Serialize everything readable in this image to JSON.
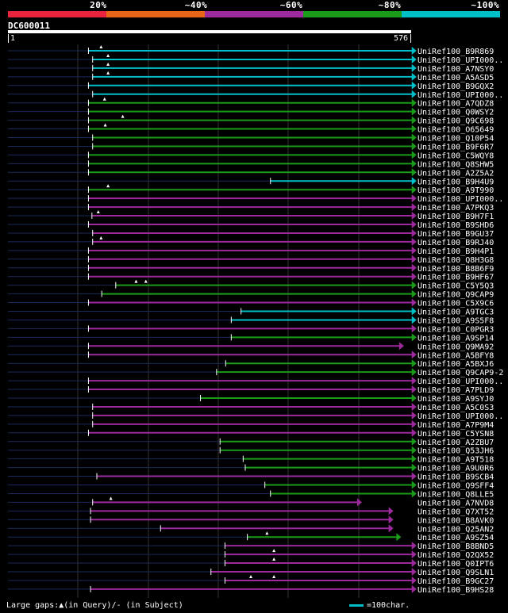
{
  "legend": {
    "colors": [
      "#e8233c",
      "#e8661a",
      "#9c2a9c",
      "#1a9c1a",
      "#00bfc8"
    ],
    "labels": [
      "20%",
      "~40%",
      "~60%",
      "~80%",
      "~100%"
    ]
  },
  "query": {
    "name": "DC600011",
    "start_label": "1",
    "end_label": "576",
    "length": 576
  },
  "hits": [
    {
      "name": "UniRef100_B9R869",
      "start": 115,
      "end": 578,
      "color": "cyan",
      "triangles": [
        133
      ]
    },
    {
      "name": "UniRef100_UPI000..",
      "start": 121,
      "end": 578,
      "color": "cyan",
      "triangles": [
        143
      ]
    },
    {
      "name": "UniRef100_A7NSY0",
      "start": 121,
      "end": 578,
      "color": "cyan",
      "triangles": [
        143
      ]
    },
    {
      "name": "UniRef100_A5ASD5",
      "start": 121,
      "end": 578,
      "color": "cyan",
      "triangles": [
        143
      ]
    },
    {
      "name": "UniRef100_B9GQX2",
      "start": 115,
      "end": 578,
      "color": "cyan",
      "triangles": []
    },
    {
      "name": "UniRef100_UPI000..",
      "start": 121,
      "end": 578,
      "color": "cyan",
      "triangles": []
    },
    {
      "name": "UniRef100_A7QDZ8",
      "start": 115,
      "end": 578,
      "color": "green",
      "triangles": [
        138
      ]
    },
    {
      "name": "UniRef100_Q0WSY2",
      "start": 115,
      "end": 578,
      "color": "green",
      "triangles": []
    },
    {
      "name": "UniRef100_Q9C698",
      "start": 115,
      "end": 578,
      "color": "green",
      "triangles": [
        164
      ]
    },
    {
      "name": "UniRef100_O65649",
      "start": 115,
      "end": 578,
      "color": "green",
      "triangles": [
        139
      ]
    },
    {
      "name": "UniRef100_Q10P54",
      "start": 121,
      "end": 578,
      "color": "green",
      "triangles": []
    },
    {
      "name": "UniRef100_B9F6R7",
      "start": 121,
      "end": 578,
      "color": "green",
      "triangles": []
    },
    {
      "name": "UniRef100_C5WQY8",
      "start": 115,
      "end": 578,
      "color": "green",
      "triangles": []
    },
    {
      "name": "UniRef100_Q8SHW5",
      "start": 115,
      "end": 578,
      "color": "green",
      "triangles": []
    },
    {
      "name": "UniRef100_A2Z5A2",
      "start": 115,
      "end": 578,
      "color": "green",
      "triangles": []
    },
    {
      "name": "UniRef100_B9H4U9",
      "start": 375,
      "end": 578,
      "color": "cyan",
      "triangles": []
    },
    {
      "name": "UniRef100_A9T990",
      "start": 115,
      "end": 578,
      "color": "green",
      "triangles": [
        143
      ]
    },
    {
      "name": "UniRef100_UPI000..",
      "start": 115,
      "end": 578,
      "color": "magenta",
      "triangles": []
    },
    {
      "name": "UniRef100_A7PKQ3",
      "start": 115,
      "end": 578,
      "color": "magenta",
      "triangles": []
    },
    {
      "name": "UniRef100_B9H7F1",
      "start": 120,
      "end": 578,
      "color": "magenta",
      "triangles": [
        129
      ]
    },
    {
      "name": "UniRef100_B9SHD6",
      "start": 115,
      "end": 578,
      "color": "magenta",
      "triangles": []
    },
    {
      "name": "UniRef100_B9GU37",
      "start": 121,
      "end": 578,
      "color": "magenta",
      "triangles": []
    },
    {
      "name": "UniRef100_B9RJ40",
      "start": 121,
      "end": 578,
      "color": "magenta",
      "triangles": [
        133
      ]
    },
    {
      "name": "UniRef100_B9H4P1",
      "start": 115,
      "end": 578,
      "color": "magenta",
      "triangles": []
    },
    {
      "name": "UniRef100_Q8H3G8",
      "start": 115,
      "end": 578,
      "color": "magenta",
      "triangles": []
    },
    {
      "name": "UniRef100_B8B6F9",
      "start": 115,
      "end": 578,
      "color": "magenta",
      "triangles": []
    },
    {
      "name": "UniRef100_B9HF67",
      "start": 115,
      "end": 578,
      "color": "magenta",
      "triangles": []
    },
    {
      "name": "UniRef100_C5Y5Q3",
      "start": 154,
      "end": 578,
      "color": "green",
      "triangles": [
        183,
        197
      ]
    },
    {
      "name": "UniRef100_Q9CAP9",
      "start": 134,
      "end": 578,
      "color": "green",
      "triangles": []
    },
    {
      "name": "UniRef100_C5X9C6",
      "start": 115,
      "end": 578,
      "color": "magenta",
      "triangles": []
    },
    {
      "name": "UniRef100_A9TGC3",
      "start": 333,
      "end": 578,
      "color": "cyan",
      "triangles": []
    },
    {
      "name": "UniRef100_A9S5F8",
      "start": 319,
      "end": 578,
      "color": "cyan",
      "triangles": []
    },
    {
      "name": "UniRef100_C0PGR3",
      "start": 115,
      "end": 578,
      "color": "magenta",
      "triangles": []
    },
    {
      "name": "UniRef100_A9SP14",
      "start": 319,
      "end": 578,
      "color": "green",
      "triangles": []
    },
    {
      "name": "UniRef100_Q9MA92",
      "start": 115,
      "end": 560,
      "color": "magenta",
      "triangles": []
    },
    {
      "name": "UniRef100_A5BFY8",
      "start": 115,
      "end": 578,
      "color": "magenta",
      "triangles": []
    },
    {
      "name": "UniRef100_A5BXJ6",
      "start": 311,
      "end": 578,
      "color": "green",
      "triangles": []
    },
    {
      "name": "UniRef100_Q9CAP9-2",
      "start": 298,
      "end": 578,
      "color": "green",
      "triangles": []
    },
    {
      "name": "UniRef100_UPI000..",
      "start": 115,
      "end": 578,
      "color": "magenta",
      "triangles": []
    },
    {
      "name": "UniRef100_A7PLD9",
      "start": 115,
      "end": 578,
      "color": "magenta",
      "triangles": []
    },
    {
      "name": "UniRef100_A9SYJ0",
      "start": 275,
      "end": 578,
      "color": "green",
      "triangles": []
    },
    {
      "name": "UniRef100_A5C0S3",
      "start": 121,
      "end": 578,
      "color": "magenta",
      "triangles": []
    },
    {
      "name": "UniRef100_UPI000..",
      "start": 121,
      "end": 578,
      "color": "magenta",
      "triangles": []
    },
    {
      "name": "UniRef100_A7P9M4",
      "start": 121,
      "end": 578,
      "color": "magenta",
      "triangles": []
    },
    {
      "name": "UniRef100_C5YSN8",
      "start": 115,
      "end": 578,
      "color": "magenta",
      "triangles": []
    },
    {
      "name": "UniRef100_A2ZBU7",
      "start": 303,
      "end": 578,
      "color": "green",
      "triangles": []
    },
    {
      "name": "UniRef100_Q53JH6",
      "start": 303,
      "end": 578,
      "color": "green",
      "triangles": []
    },
    {
      "name": "UniRef100_A9T518",
      "start": 336,
      "end": 578,
      "color": "green",
      "triangles": []
    },
    {
      "name": "UniRef100_A9U0R6",
      "start": 339,
      "end": 578,
      "color": "green",
      "triangles": []
    },
    {
      "name": "UniRef100_B9SCB4",
      "start": 127,
      "end": 578,
      "color": "magenta",
      "triangles": []
    },
    {
      "name": "UniRef100_Q9SFF4",
      "start": 367,
      "end": 578,
      "color": "green",
      "triangles": []
    },
    {
      "name": "UniRef100_Q8LLE5",
      "start": 375,
      "end": 578,
      "color": "green",
      "triangles": []
    },
    {
      "name": "UniRef100_A7NVD8",
      "start": 121,
      "end": 500,
      "color": "magenta",
      "triangles": [
        147
      ]
    },
    {
      "name": "UniRef100_Q7XT52",
      "start": 118,
      "end": 545,
      "color": "magenta",
      "triangles": []
    },
    {
      "name": "UniRef100_B8AVK0",
      "start": 118,
      "end": 545,
      "color": "magenta",
      "triangles": []
    },
    {
      "name": "UniRef100_Q25AN2",
      "start": 218,
      "end": 545,
      "color": "magenta",
      "triangles": []
    },
    {
      "name": "UniRef100_A9SZ54",
      "start": 342,
      "end": 556,
      "color": "green",
      "triangles": [
        370
      ]
    },
    {
      "name": "UniRef100_B8BND5",
      "start": 310,
      "end": 578,
      "color": "magenta",
      "triangles": []
    },
    {
      "name": "UniRef100_Q2QX52",
      "start": 310,
      "end": 578,
      "color": "magenta",
      "triangles": [
        380
      ]
    },
    {
      "name": "UniRef100_Q0IPT6",
      "start": 310,
      "end": 578,
      "color": "magenta",
      "triangles": [
        380
      ]
    },
    {
      "name": "UniRef100_Q9SLN1",
      "start": 290,
      "end": 578,
      "color": "magenta",
      "triangles": []
    },
    {
      "name": "UniRef100_B9GC27",
      "start": 310,
      "end": 578,
      "color": "magenta",
      "triangles": [
        347,
        380
      ]
    },
    {
      "name": "UniRef100_B9HS28",
      "start": 118,
      "end": 578,
      "color": "magenta",
      "triangles": []
    }
  ],
  "footer": {
    "gaps_text": "Large gaps:▲(in Query)/- (in Subject)",
    "scale_text": "=100char."
  }
}
